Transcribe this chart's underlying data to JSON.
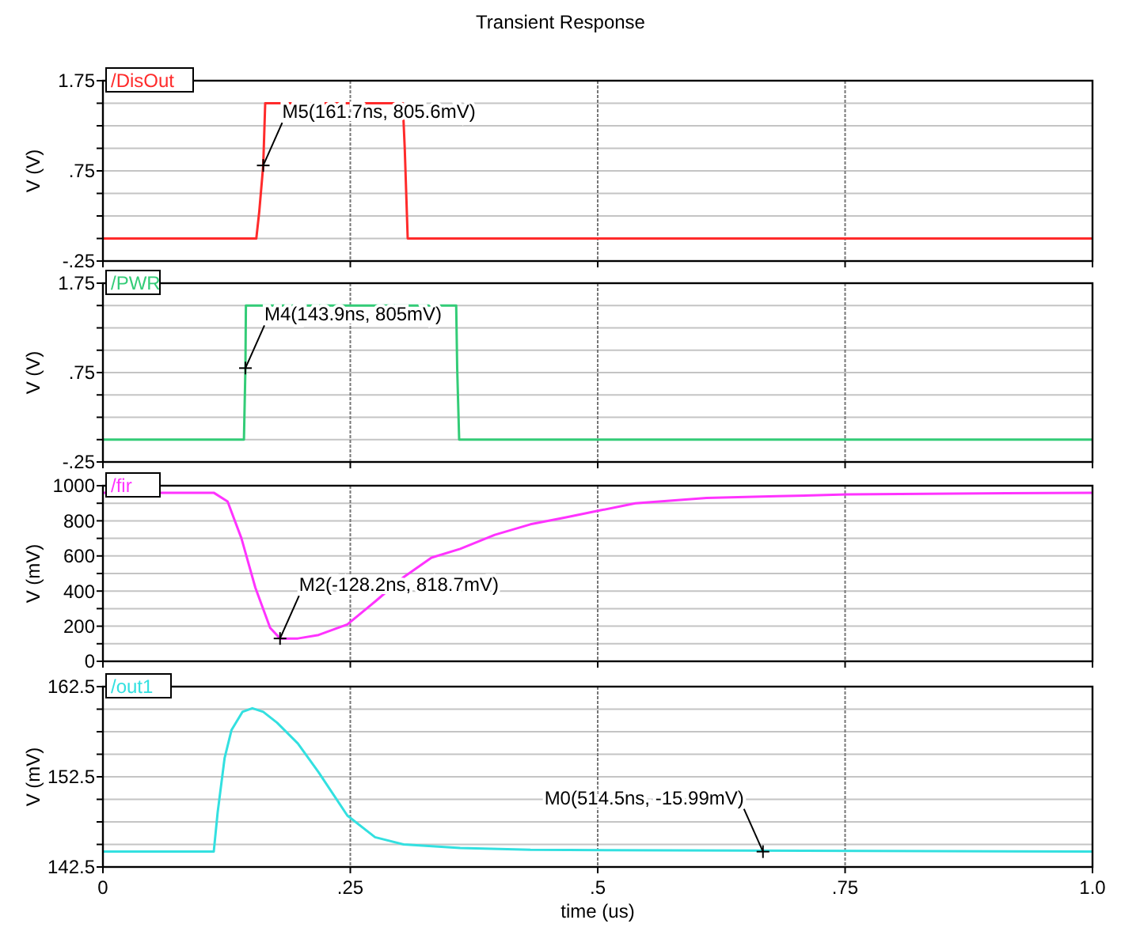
{
  "chart_data": [
    {
      "type": "line",
      "title": "Transient Response",
      "ylabel": "V (V)",
      "xlim": [
        0,
        1
      ],
      "xticks": [
        {
          "value": 0,
          "label": null
        },
        {
          "value": 0.25,
          "label": null
        },
        {
          "value": 0.5,
          "label": null
        },
        {
          "value": 0.75,
          "label": null
        },
        {
          "value": 1,
          "label": null
        }
      ],
      "ylim": [
        -0.25,
        1.75
      ],
      "yticks": [
        {
          "value": -0.25,
          "label": "-.25"
        },
        {
          "value": 0,
          "label": null
        },
        {
          "value": 0.25,
          "label": null
        },
        {
          "value": 0.5,
          "label": null
        },
        {
          "value": 0.75,
          "label": ".75"
        },
        {
          "value": 1,
          "label": null
        },
        {
          "value": 1.25,
          "label": null
        },
        {
          "value": 1.5,
          "label": null
        },
        {
          "value": 1.75,
          "label": "1.75"
        }
      ],
      "tick_labels": "y",
      "grid": true,
      "legend": "top left",
      "marker": "none",
      "line_style": "solid",
      "series": [
        {
          "name": "/DisOut",
          "color": "#ff2b2b",
          "x": [
            0,
            0.155,
            0.158,
            0.162,
            0.164,
            0.303,
            0.305,
            0.308,
            1
          ],
          "values": [
            0,
            0,
            0.3,
            0.81,
            1.5,
            1.5,
            1.0,
            0,
            0
          ]
        }
      ],
      "annotations": [
        {
          "text": "M5(161.7ns, 805.6mV)",
          "x": 0.162,
          "y": 0.81
        }
      ]
    },
    {
      "type": "line",
      "ylabel": "V (V)",
      "xlim": [
        0,
        1
      ],
      "xticks": [
        {
          "value": 0,
          "label": null
        },
        {
          "value": 0.25,
          "label": null
        },
        {
          "value": 0.5,
          "label": null
        },
        {
          "value": 0.75,
          "label": null
        },
        {
          "value": 1,
          "label": null
        }
      ],
      "ylim": [
        -0.25,
        1.75
      ],
      "yticks": [
        {
          "value": -0.25,
          "label": "-.25"
        },
        {
          "value": 0,
          "label": null
        },
        {
          "value": 0.25,
          "label": null
        },
        {
          "value": 0.5,
          "label": null
        },
        {
          "value": 0.75,
          "label": ".75"
        },
        {
          "value": 1,
          "label": null
        },
        {
          "value": 1.25,
          "label": null
        },
        {
          "value": 1.5,
          "label": null
        },
        {
          "value": 1.75,
          "label": "1.75"
        }
      ],
      "tick_labels": "y",
      "grid": true,
      "legend": "top left",
      "marker": "none",
      "line_style": "solid",
      "series": [
        {
          "name": "/PWR",
          "color": "#33cc77",
          "x": [
            0,
            0.1425,
            0.144,
            0.1445,
            0.357,
            0.358,
            0.36,
            1
          ],
          "values": [
            0,
            0,
            0.8,
            1.5,
            1.5,
            0.8,
            0,
            0
          ]
        }
      ],
      "annotations": [
        {
          "text": "M4(143.9ns, 805mV)",
          "x": 0.144,
          "y": 0.8
        }
      ]
    },
    {
      "type": "line",
      "ylabel": "V (mV)",
      "xlim": [
        0,
        1
      ],
      "xticks": [
        {
          "value": 0,
          "label": null
        },
        {
          "value": 0.25,
          "label": null
        },
        {
          "value": 0.5,
          "label": null
        },
        {
          "value": 0.75,
          "label": null
        },
        {
          "value": 1,
          "label": null
        }
      ],
      "ylim": [
        0,
        1000
      ],
      "yticks": [
        0,
        {
          "value": 100,
          "label": null
        },
        200,
        {
          "value": 300,
          "label": null
        },
        400,
        {
          "value": 500,
          "label": null
        },
        600,
        {
          "value": 700,
          "label": null
        },
        800,
        {
          "value": 900,
          "label": null
        },
        1000
      ],
      "tick_labels": "y",
      "grid": true,
      "legend": "top left",
      "marker": "none",
      "line_style": "solid",
      "series": [
        {
          "name": "/fir",
          "color": "#ff33ff",
          "x": [
            0,
            0.112,
            0.126,
            0.14,
            0.154,
            0.169,
            0.179,
            0.197,
            0.218,
            0.247,
            0.275,
            0.304,
            0.332,
            0.361,
            0.396,
            0.432,
            0.468,
            0.503,
            0.538,
            0.61,
            0.681,
            0.752,
            0.859,
            1
          ],
          "values": [
            960,
            960,
            910,
            700,
            420,
            190,
            130,
            130,
            150,
            210,
            340,
            480,
            590,
            640,
            720,
            780,
            820,
            860,
            900,
            930,
            940,
            950,
            955,
            960
          ]
        }
      ],
      "annotations": [
        {
          "text": "M2(-128.2ns, 818.7mV)",
          "x": 0.179,
          "y": 130
        }
      ]
    },
    {
      "type": "line",
      "xlabel": "time (us)",
      "ylabel": "V (mV)",
      "xlim": [
        0,
        1
      ],
      "xticks": [
        0,
        {
          "value": 0.25,
          "label": ".25"
        },
        {
          "value": 0.5,
          "label": ".5"
        },
        {
          "value": 0.75,
          "label": ".75"
        },
        {
          "value": 1,
          "label": "1.0"
        }
      ],
      "ylim": [
        142.5,
        162.5
      ],
      "yticks": [
        142.5,
        {
          "value": 145,
          "label": null
        },
        {
          "value": 147.5,
          "label": null
        },
        {
          "value": 150,
          "label": null
        },
        152.5,
        {
          "value": 155,
          "label": null
        },
        {
          "value": 157.5,
          "label": null
        },
        {
          "value": 160,
          "label": null
        },
        162.5
      ],
      "grid": true,
      "legend": "top left",
      "marker": "none",
      "line_style": "solid",
      "series": [
        {
          "name": "/out1",
          "color": "#33e0e0",
          "x": [
            0,
            0.112,
            0.116,
            0.123,
            0.13,
            0.141,
            0.151,
            0.162,
            0.176,
            0.197,
            0.218,
            0.247,
            0.275,
            0.304,
            0.361,
            0.432,
            1
          ],
          "values": [
            144.2,
            144.2,
            148.6,
            154.6,
            157.7,
            159.7,
            160.1,
            159.7,
            158.5,
            156.2,
            153,
            148.2,
            145.8,
            145,
            144.6,
            144.4,
            144.2
          ]
        }
      ],
      "annotations": [
        {
          "text": "M0(514.5ns, -15.99mV)",
          "x": 0.667,
          "y": 144.2
        }
      ]
    }
  ]
}
